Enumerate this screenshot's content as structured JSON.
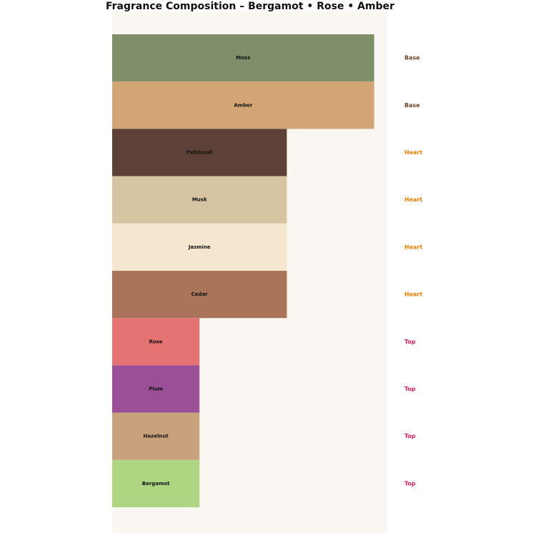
{
  "chart_data": {
    "type": "bar",
    "orientation": "horizontal",
    "title": "Fragrance Composition – Bergamot • Rose • Amber",
    "categories": [
      "Moss",
      "Amber",
      "Patchouli",
      "Musk",
      "Jasmine",
      "Cedar",
      "Rose",
      "Plum",
      "Hazelnut",
      "Bergamot"
    ],
    "values": [
      3,
      3,
      2,
      2,
      2,
      2,
      1,
      1,
      1,
      1
    ],
    "colors": [
      "#7f8f6a",
      "#d4a574",
      "#5d4037",
      "#d7c4a3",
      "#f5e6d0",
      "#a9745a",
      "#e57373",
      "#9b4f96",
      "#c8a27c",
      "#aed581"
    ],
    "tiers": [
      "Base",
      "Base",
      "Heart",
      "Heart",
      "Heart",
      "Heart",
      "Top",
      "Top",
      "Top",
      "Top"
    ],
    "tier_colors": [
      "#6b4226",
      "#6b4226",
      "#ef7d00",
      "#ef7d00",
      "#ef7d00",
      "#ef7d00",
      "#d81b60",
      "#d81b60",
      "#d81b60",
      "#d81b60"
    ],
    "xlim": [
      0,
      3.15
    ],
    "background": "#faf7f2"
  }
}
